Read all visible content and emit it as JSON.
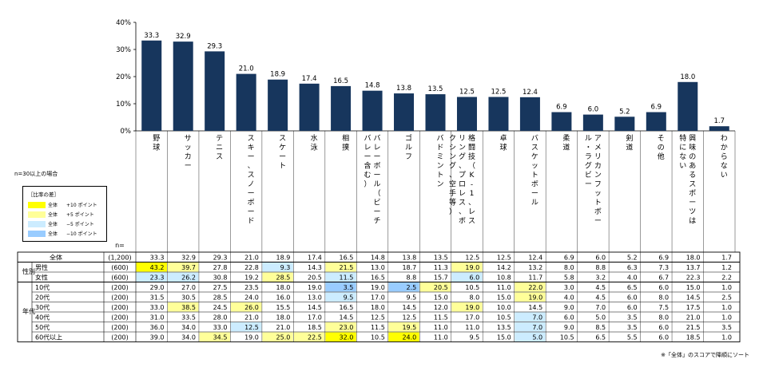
{
  "chart_data": {
    "type": "bar",
    "categories": [
      "野球",
      "サッカー",
      "テニス",
      "スキー、スノーボード",
      "スケート",
      "水泳",
      "相撲",
      "バレーボール（ビーチバレー含む）",
      "ゴルフ",
      "バドミントン",
      "格闘技（K-1、レスリング、プロレス、ボクシング、空手等）",
      "卓球",
      "バスケットボール",
      "柔道",
      "アメリカンフットボール・ラグビー",
      "剣道",
      "その他",
      "興味のあるスポーツは特にない",
      "わからない"
    ],
    "values": [
      33.3,
      32.9,
      29.3,
      21.0,
      18.9,
      17.4,
      16.5,
      14.8,
      13.8,
      13.5,
      12.5,
      12.5,
      12.4,
      6.9,
      6.0,
      5.2,
      6.9,
      18.0,
      1.7
    ],
    "value_labels": [
      "33.3",
      "32.9",
      "29.3",
      "21.0",
      "18.9",
      "17.4",
      "16.5",
      "14.8",
      "13.8",
      "13.5",
      "12.5",
      "12.5",
      "12.4",
      "6.9",
      "6.0",
      "5.2",
      "6.9",
      "18.0",
      "1.7"
    ],
    "ylim": [
      0,
      40
    ],
    "yticks": [
      "0%",
      "10%",
      "20%",
      "30%",
      "40%"
    ],
    "bar_color": "#17365d",
    "table": {
      "n_header": "n=",
      "rows": [
        {
          "group": "",
          "label": "全体",
          "n": "(1,200)",
          "values": [
            "33.3",
            "32.9",
            "29.3",
            "21.0",
            "18.9",
            "17.4",
            "16.5",
            "14.8",
            "13.8",
            "13.5",
            "12.5",
            "12.5",
            "12.4",
            "6.9",
            "6.0",
            "5.2",
            "6.9",
            "18.0",
            "1.7"
          ]
        },
        {
          "group": "性別",
          "label": "男性",
          "n": "(600)",
          "values": [
            "43.2",
            "39.7",
            "27.8",
            "22.8",
            "9.3",
            "14.3",
            "21.5",
            "13.0",
            "18.7",
            "11.3",
            "19.0",
            "14.2",
            "13.2",
            "8.0",
            "8.8",
            "6.3",
            "7.3",
            "13.7",
            "1.2"
          ]
        },
        {
          "group": "",
          "label": "女性",
          "n": "(600)",
          "values": [
            "23.3",
            "26.2",
            "30.8",
            "19.2",
            "28.5",
            "20.5",
            "11.5",
            "16.5",
            "8.8",
            "15.7",
            "6.0",
            "10.8",
            "11.7",
            "5.8",
            "3.2",
            "4.0",
            "6.7",
            "22.3",
            "2.2"
          ]
        },
        {
          "group": "年代",
          "label": "10代",
          "n": "(200)",
          "values": [
            "29.0",
            "27.0",
            "27.5",
            "23.5",
            "18.0",
            "19.0",
            "3.5",
            "19.0",
            "2.5",
            "20.5",
            "10.5",
            "11.0",
            "22.0",
            "3.0",
            "4.5",
            "6.5",
            "6.0",
            "15.0",
            "1.0"
          ]
        },
        {
          "group": "",
          "label": "20代",
          "n": "(200)",
          "values": [
            "31.5",
            "30.5",
            "28.5",
            "24.0",
            "16.0",
            "13.0",
            "9.5",
            "17.0",
            "9.5",
            "15.0",
            "8.0",
            "15.0",
            "19.0",
            "4.0",
            "4.5",
            "6.0",
            "8.0",
            "14.5",
            "2.5"
          ]
        },
        {
          "group": "",
          "label": "30代",
          "n": "(200)",
          "values": [
            "33.0",
            "38.5",
            "24.5",
            "26.0",
            "15.5",
            "14.5",
            "16.5",
            "18.0",
            "14.5",
            "12.0",
            "19.0",
            "10.0",
            "14.5",
            "9.0",
            "7.0",
            "6.0",
            "7.5",
            "17.5",
            "1.0"
          ]
        },
        {
          "group": "",
          "label": "40代",
          "n": "(200)",
          "values": [
            "31.0",
            "33.5",
            "28.0",
            "21.0",
            "18.0",
            "17.0",
            "14.5",
            "12.5",
            "12.5",
            "11.5",
            "17.0",
            "10.5",
            "7.0",
            "6.0",
            "5.0",
            "3.5",
            "8.0",
            "21.0",
            "1.0"
          ]
        },
        {
          "group": "",
          "label": "50代",
          "n": "(200)",
          "values": [
            "36.0",
            "34.0",
            "33.0",
            "12.5",
            "21.0",
            "18.5",
            "23.0",
            "11.5",
            "19.5",
            "11.0",
            "11.0",
            "13.5",
            "7.0",
            "9.0",
            "8.5",
            "3.5",
            "6.0",
            "21.5",
            "3.5"
          ]
        },
        {
          "group": "",
          "label": "60代以上",
          "n": "(200)",
          "values": [
            "39.0",
            "34.0",
            "34.5",
            "19.0",
            "25.0",
            "22.5",
            "32.0",
            "10.5",
            "24.0",
            "11.0",
            "9.5",
            "15.0",
            "5.0",
            "10.5",
            "6.5",
            "5.5",
            "6.0",
            "18.5",
            "1.0"
          ]
        }
      ],
      "highlights": [
        {
          "row": 1,
          "col": 0,
          "lvl": "y10"
        },
        {
          "row": 1,
          "col": 1,
          "lvl": "y5"
        },
        {
          "row": 1,
          "col": 4,
          "lvl": "b5"
        },
        {
          "row": 1,
          "col": 6,
          "lvl": "y5"
        },
        {
          "row": 1,
          "col": 10,
          "lvl": "y5"
        },
        {
          "row": 2,
          "col": 0,
          "lvl": "b5"
        },
        {
          "row": 2,
          "col": 1,
          "lvl": "b5"
        },
        {
          "row": 2,
          "col": 4,
          "lvl": "y5"
        },
        {
          "row": 2,
          "col": 6,
          "lvl": "b5"
        },
        {
          "row": 2,
          "col": 10,
          "lvl": "b5"
        },
        {
          "row": 3,
          "col": 6,
          "lvl": "b10"
        },
        {
          "row": 3,
          "col": 8,
          "lvl": "b10"
        },
        {
          "row": 3,
          "col": 9,
          "lvl": "y5"
        },
        {
          "row": 3,
          "col": 12,
          "lvl": "y5"
        },
        {
          "row": 4,
          "col": 6,
          "lvl": "b5"
        },
        {
          "row": 4,
          "col": 12,
          "lvl": "y5"
        },
        {
          "row": 5,
          "col": 1,
          "lvl": "y5"
        },
        {
          "row": 5,
          "col": 3,
          "lvl": "y5"
        },
        {
          "row": 5,
          "col": 10,
          "lvl": "y5"
        },
        {
          "row": 6,
          "col": 12,
          "lvl": "b5"
        },
        {
          "row": 7,
          "col": 3,
          "lvl": "b5"
        },
        {
          "row": 7,
          "col": 6,
          "lvl": "y5"
        },
        {
          "row": 7,
          "col": 8,
          "lvl": "y5"
        },
        {
          "row": 7,
          "col": 12,
          "lvl": "b5"
        },
        {
          "row": 8,
          "col": 2,
          "lvl": "y5"
        },
        {
          "row": 8,
          "col": 4,
          "lvl": "y5"
        },
        {
          "row": 8,
          "col": 5,
          "lvl": "y5"
        },
        {
          "row": 8,
          "col": 6,
          "lvl": "y10"
        },
        {
          "row": 8,
          "col": 8,
          "lvl": "y10"
        },
        {
          "row": 8,
          "col": 12,
          "lvl": "b5"
        }
      ]
    }
  },
  "notes": {
    "sample": "n=30以上の場合",
    "sort": "※「全体」のスコアで降順にソート"
  },
  "legend": {
    "title": "［比率の差］",
    "items": [
      {
        "label": "全体",
        "value": "+10 ポイント",
        "color": "#ffff00"
      },
      {
        "label": "全体",
        "value": "+5 ポイント",
        "color": "#ffff99"
      },
      {
        "label": "全体",
        "value": "−5 ポイント",
        "color": "#ccecff"
      },
      {
        "label": "全体",
        "value": "−10 ポイント",
        "color": "#99ccff"
      }
    ]
  },
  "colors": {
    "y10": "#ffff00",
    "y5": "#ffff99",
    "b5": "#ccecff",
    "b10": "#99ccff"
  }
}
